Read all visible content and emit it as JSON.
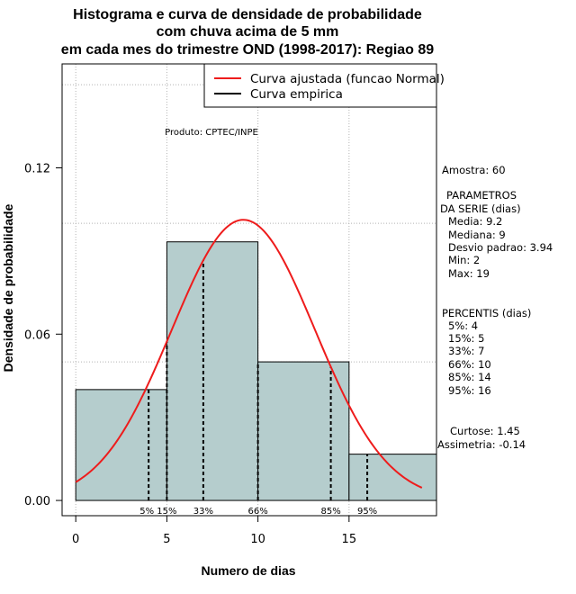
{
  "chart_data": {
    "type": "histogram",
    "title_lines": [
      "Histograma e curva de densidade de probabilidade",
      "com chuva acima de 5 mm",
      "em cada mes do trimestre OND (1998-2017): Regiao 89"
    ],
    "xlabel": "Numero de dias",
    "ylabel": "Densidade de probabilidade",
    "xlim": [
      -0.75,
      19.8
    ],
    "ylim": [
      -0.0055,
      0.1575
    ],
    "x_ticks": [
      0,
      5,
      10,
      15
    ],
    "x_tick_labels": [
      "0",
      "5",
      "10",
      "15"
    ],
    "y_ticks": [
      0.0,
      0.06,
      0.12
    ],
    "y_tick_labels": [
      "0.00",
      "0.06",
      "0.12"
    ],
    "grid_y": [
      0.05,
      0.1,
      0.15
    ],
    "grid_x": [
      0,
      5,
      10,
      15
    ],
    "bins": [
      {
        "start": 0,
        "end": 5,
        "density": 0.04
      },
      {
        "start": 5,
        "end": 10,
        "density": 0.0933
      },
      {
        "start": 10,
        "end": 15,
        "density": 0.05
      },
      {
        "start": 15,
        "end": 20,
        "density": 0.0167
      }
    ],
    "bar_fill": "#b5cdcd",
    "curve_color": "#ee1c1c",
    "normal_fit": {
      "mean": 9.2,
      "sd": 3.94,
      "x_range": [
        0,
        19
      ]
    },
    "percentile_lines": [
      {
        "label": "5%",
        "x": 4
      },
      {
        "label": "15%",
        "x": 5
      },
      {
        "label": "33%",
        "x": 7
      },
      {
        "label": "66%",
        "x": 10
      },
      {
        "label": "85%",
        "x": 14
      },
      {
        "label": "95%",
        "x": 16
      }
    ],
    "legend": {
      "position": "top-right",
      "items": [
        {
          "label": "Curva ajustada (funcao Normal)",
          "color": "#ee1c1c"
        },
        {
          "label": "Curva empirica",
          "color": "#000000"
        }
      ]
    },
    "annotation": "Produto: CPTEC/INPE"
  },
  "stats_panel": {
    "amostra": "Amostra: 60",
    "parametros_title": [
      "PARAMETROS",
      "DA SERIE (dias)"
    ],
    "parametros": [
      "Media: 9.2",
      "Mediana: 9",
      "Desvio padrao: 3.94",
      "Min: 2",
      "Max: 19"
    ],
    "percentis_title": "PERCENTIS (dias)",
    "percentis": [
      "5%: 4",
      "15%: 5",
      "33%: 7",
      "66%: 10",
      "85%: 14",
      "95%: 16"
    ],
    "curtose": "Curtose: 1.45",
    "assimetria": "Assimetria: -0.14"
  }
}
